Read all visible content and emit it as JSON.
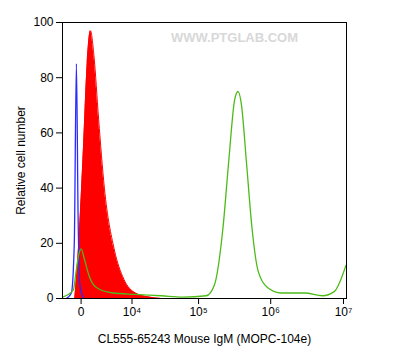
{
  "chart_data": {
    "type": "histogram",
    "x_label": "CL555-65243 Mouse IgM (MOPC-104e)",
    "y_label": "Relative cell number",
    "annotations": [
      {
        "text": "WWW.PTGLAB.COM"
      }
    ],
    "log": "x",
    "xlim": [
      -2000,
      11000000
    ],
    "xticks": [
      0,
      {
        "value": 10000,
        "label": "10⁴"
      },
      {
        "value": 100000,
        "label": "10⁵"
      },
      {
        "value": 1000000,
        "label": "10⁶"
      },
      {
        "value": 10000000,
        "label": "10⁷"
      }
    ],
    "ylim": [
      0,
      100
    ],
    "yticks": [
      0,
      20,
      40,
      60,
      80,
      100
    ],
    "grid": false,
    "series": [
      {
        "type": "area",
        "color": "#ff0000",
        "x": [
          -550,
          -190,
          200,
          530,
          860,
          1250,
          1850,
          2720,
          4600,
          7150,
          11400,
          19000,
          29000
        ],
        "values": [
          0,
          20,
          55,
          85,
          97,
          88,
          65,
          40,
          18,
          7,
          2,
          0.5,
          0
        ]
      },
      {
        "type": "line",
        "color": "#2a2aff",
        "x": [
          -1500,
          -900,
          -600,
          -400,
          -250,
          -100,
          200
        ],
        "values": [
          0,
          2,
          20,
          85,
          30,
          5,
          0
        ]
      },
      {
        "type": "line",
        "color": "#4cbb17",
        "x": [
          -2000,
          -700,
          -420,
          -190,
          0,
          290,
          740,
          1550,
          4300,
          11400,
          29000,
          60000,
          128000,
          167000,
          218000,
          264000,
          318000,
          354000,
          396000,
          461000,
          555000,
          670000,
          900000,
          1400000,
          2940000,
          5150000,
          7450000,
          10800000
        ],
        "values": [
          0.5,
          3,
          10,
          16,
          18,
          14,
          8,
          4,
          2,
          1.5,
          1,
          0.5,
          1,
          5,
          25,
          50,
          72,
          75,
          70,
          50,
          25,
          10,
          4,
          2,
          2,
          1,
          2.5,
          12
        ]
      }
    ]
  }
}
